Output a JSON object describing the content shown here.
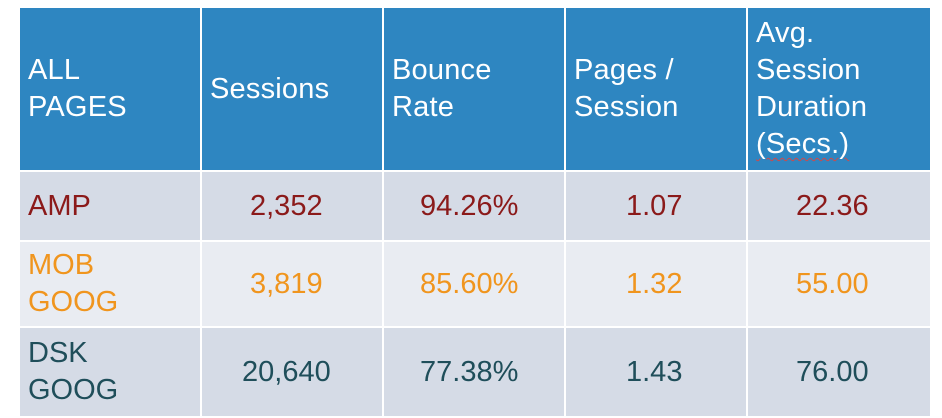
{
  "table": {
    "headers": [
      {
        "label": "ALL\nPAGES"
      },
      {
        "label": "Sessions"
      },
      {
        "label": "Bounce\nRate"
      },
      {
        "label": "Pages /\nSession"
      },
      {
        "label_main": "Avg.\nSession\nDuration\n",
        "label_underlined": "(Secs.)"
      }
    ],
    "rows": [
      {
        "name": "AMP",
        "sessions": "2,352",
        "bounce_rate": "94.26%",
        "pages_per_session": "1.07",
        "avg_duration": "22.36",
        "color": "#8b1a1a"
      },
      {
        "name": "MOB\nGOOG",
        "sessions": "3,819",
        "bounce_rate": "85.60%",
        "pages_per_session": "1.32",
        "avg_duration": "55.00",
        "color": "#f0951e"
      },
      {
        "name": "DSK\nGOOG",
        "sessions": "20,640",
        "bounce_rate": "77.38%",
        "pages_per_session": "1.43",
        "avg_duration": "76.00",
        "color": "#1f4e5a"
      }
    ]
  },
  "colors": {
    "header_bg": "#2e86c1",
    "row_dark_bg": "#d5dbe6",
    "row_light_bg": "#e9ecf2"
  }
}
